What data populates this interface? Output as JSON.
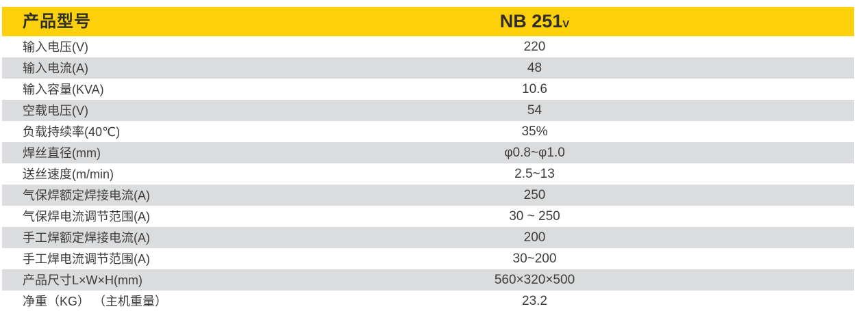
{
  "table": {
    "header": {
      "label": "产品型号",
      "model": "NB 251",
      "model_suffix": "V"
    },
    "rows": [
      {
        "label": "输入电压(V)",
        "value": "220"
      },
      {
        "label": "输入电流(A)",
        "value": "48"
      },
      {
        "label": "输入容量(KVA)",
        "value": "10.6"
      },
      {
        "label": "空载电压(V)",
        "value": "54"
      },
      {
        "label": "负载持续率(40℃)",
        "value": "35%"
      },
      {
        "label": "焊丝直径(mm)",
        "value": "φ0.8~φ1.0"
      },
      {
        "label": "送丝速度(m/min)",
        "value": "2.5~13"
      },
      {
        "label": "气保焊额定焊接电流(A)",
        "value": "250"
      },
      {
        "label": "气保焊电流调节范围(A)",
        "value": "30 ~ 250"
      },
      {
        "label": "手工焊额定焊接电流(A)",
        "value": "200"
      },
      {
        "label": "手工焊电流调节范围(A)",
        "value": "30~200"
      },
      {
        "label": "产品尺寸L×W×H(mm)",
        "value": "560×320×500"
      },
      {
        "label": "净重（KG） （主机重量）",
        "value": "23.2"
      }
    ]
  },
  "colors": {
    "header_bg": "#fcd00a",
    "header_text": "#2f2f2f",
    "row_alt_bg": "#dbdcdd",
    "body_text": "#3d3d3d"
  }
}
